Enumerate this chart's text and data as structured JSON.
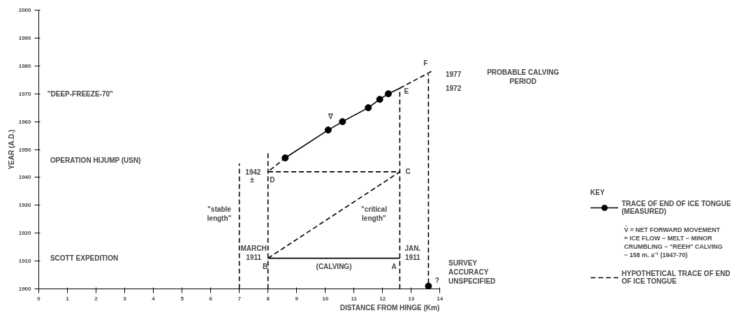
{
  "chart_data": {
    "type": "line",
    "xlabel": "DISTANCE FROM HINGE (Km)",
    "ylabel": "YEAR (A.D.)",
    "legend_title": "KEY",
    "legend": "bottom right",
    "grid": false,
    "xlim": [
      0,
      14
    ],
    "ylim": [
      1900,
      2000
    ],
    "xticks": [
      0,
      1,
      2,
      3,
      4,
      5,
      6,
      7,
      8,
      9,
      10,
      11,
      12,
      13,
      14
    ],
    "yticks": [
      1900,
      1910,
      1920,
      1930,
      1940,
      1950,
      1960,
      1970,
      1980,
      1990,
      2000
    ],
    "series": [
      {
        "name": "TRACE OF END OF ICE TONGUE\n(MEASURED)",
        "color": "#000000",
        "line_style": "solid",
        "marker": "circle",
        "x": [
          8.6,
          10.1,
          10.6,
          11.5,
          11.9,
          12.2
        ],
        "values": [
          1947,
          1957,
          1960,
          1965,
          1968,
          1970
        ]
      },
      {
        "color": "#000000",
        "line_style": "solid",
        "x": [
          12.2,
          12.6
        ],
        "values": [
          1970,
          1972
        ]
      },
      {
        "name": "HYPOTHETICAL TRACE OF END\nOF ICE TONGUE",
        "color": "#000000",
        "line_style": "dashed",
        "x": [
          8,
          12.6,
          8,
          8.6
        ],
        "values": [
          1911,
          1942,
          1942,
          1947
        ]
      },
      {
        "color": "#000000",
        "line_style": "dashed",
        "x": [
          12.6,
          13.7
        ],
        "values": [
          1972,
          1978
        ]
      },
      {
        "color": "#000000",
        "line_style": "solid",
        "x": [
          12.6,
          8
        ],
        "values": [
          1911,
          1911
        ]
      },
      {
        "color": "#000000",
        "line_style": "dashed",
        "x": [
          7,
          7
        ],
        "values": [
          1900,
          1945
        ]
      },
      {
        "color": "#000000",
        "line_style": "dashed",
        "x": [
          8,
          8
        ],
        "values": [
          1900,
          1949
        ]
      },
      {
        "color": "#000000",
        "line_style": "dashed",
        "x": [
          12.6,
          12.6
        ],
        "values": [
          1900,
          1972
        ]
      },
      {
        "color": "#000000",
        "line_style": "dashed",
        "x": [
          13.6,
          13.6
        ],
        "values": [
          1902,
          1977
        ]
      },
      {
        "type": "scatter",
        "color": "#000000",
        "marker": "circle",
        "x": [
          13.6
        ],
        "values": [
          1901
        ]
      }
    ],
    "annotations": [
      "\"DEEP-FREEZE-70\"",
      "OPERATION HIJUMP (USN)",
      "SCOTT EXPEDITION",
      "1942",
      "±",
      "D",
      "C",
      "E",
      "F",
      "B",
      "A",
      "MARCH\n1911",
      "JAN.\n1911",
      "(CALVING)",
      "\"stable\nlength\"",
      "\"critical\nlength\"",
      "∇",
      "1977",
      "1972",
      "PROBABLE CALVING\nPERIOD",
      "?",
      "SURVEY\nACCURACY\nUNSPECIFIED",
      "V̄ = NET FORWARD MOVEMENT\n= ICE FLOW − MELT − MINOR\nCRUMBLING − \"REEH\" CALVING\n~ 158 m. a⁻¹ (1947-70)"
    ]
  }
}
